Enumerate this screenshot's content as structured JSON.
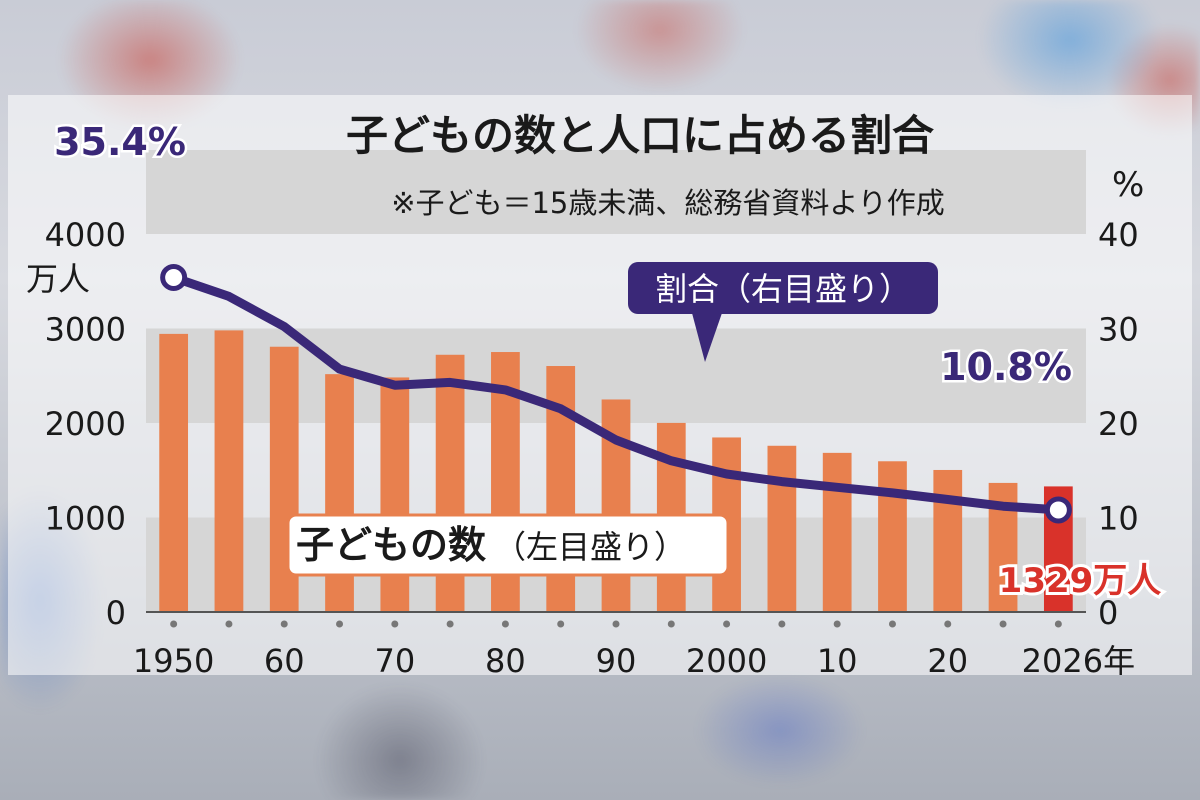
{
  "chart_data": {
    "type": "bar",
    "title": "子どもの数と人口に占める割合",
    "subtitle": "※子ども＝15歳未満、総務省資料より作成",
    "x": [
      1950,
      1955,
      1960,
      1965,
      1970,
      1975,
      1980,
      1985,
      1990,
      1995,
      2000,
      2005,
      2010,
      2015,
      2020,
      2025,
      2026
    ],
    "x_tick_labels": [
      "1950",
      "60",
      "70",
      "80",
      "90",
      "2000",
      "10",
      "20",
      "2026年"
    ],
    "x_tick_years": [
      1950,
      1960,
      1970,
      1980,
      1990,
      2000,
      2010,
      2020,
      2026
    ],
    "series": [
      {
        "name": "子どもの数",
        "axis": "left",
        "type": "bar",
        "values": [
          2943,
          2980,
          2807,
          2517,
          2482,
          2722,
          2751,
          2603,
          2249,
          2001,
          1847,
          1759,
          1684,
          1595,
          1503,
          1366,
          1329
        ]
      },
      {
        "name": "割合",
        "axis": "right",
        "type": "line",
        "values": [
          35.4,
          33.4,
          30.2,
          25.7,
          24.0,
          24.3,
          23.5,
          21.5,
          18.2,
          16.0,
          14.6,
          13.8,
          13.2,
          12.6,
          11.9,
          11.2,
          10.8
        ]
      }
    ],
    "left_axis": {
      "ticks": [
        0,
        1000,
        2000,
        3000,
        4000
      ],
      "unit": "万人",
      "ylim": [
        0,
        4000
      ]
    },
    "right_axis": {
      "ticks": [
        0,
        10,
        20,
        30,
        40
      ],
      "unit": "%",
      "ylim": [
        0,
        40
      ]
    },
    "labels": {
      "line_series_label": "割合（右目盛り）",
      "bar_series_label_main": "子どもの数",
      "bar_series_label_sub": "（左目盛り）",
      "first_ratio": "35.4%",
      "last_ratio": "10.8%",
      "last_count": "1329万人"
    },
    "colors": {
      "bar": "#e8804e",
      "bar_highlight": "#d9322a",
      "line": "#3a2878",
      "band": "#d6d6d6"
    },
    "grid": "alternating horizontal bands"
  }
}
